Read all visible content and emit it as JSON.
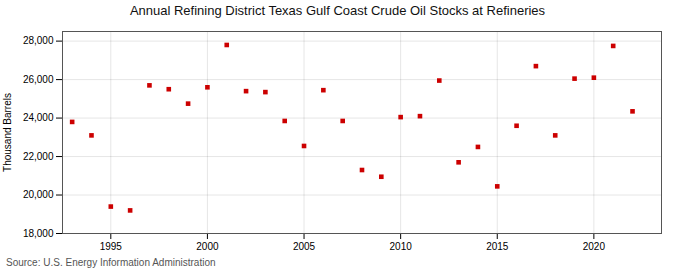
{
  "chart_data": {
    "type": "scatter",
    "title": "Annual Refining District Texas Gulf Coast Crude Oil Stocks at Refineries",
    "ylabel": "Thousand Barrels",
    "source": "Source: U.S. Energy Information Administration",
    "x": [
      1993,
      1994,
      1995,
      1996,
      1997,
      1998,
      1999,
      2000,
      2001,
      2002,
      2003,
      2004,
      2005,
      2006,
      2007,
      2008,
      2009,
      2010,
      2011,
      2012,
      2013,
      2014,
      2015,
      2016,
      2017,
      2018,
      2019,
      2020,
      2021,
      2022
    ],
    "values": [
      23800,
      23100,
      19400,
      19200,
      25700,
      25500,
      24750,
      25600,
      27800,
      25400,
      25350,
      23850,
      22550,
      25450,
      23850,
      21300,
      20950,
      24050,
      24100,
      25950,
      21700,
      22500,
      20450,
      23600,
      26700,
      23100,
      26050,
      26100,
      27750,
      24350
    ],
    "color": "#cc0000",
    "marker": "square",
    "xlim": [
      1992.5,
      2023.5
    ],
    "ylim": [
      18000,
      28500
    ],
    "xticks": [
      1995,
      2000,
      2005,
      2010,
      2015,
      2020
    ],
    "yticks": [
      {
        "value": 18000,
        "label": "18,000"
      },
      {
        "value": 20000,
        "label": "20,000"
      },
      {
        "value": 22000,
        "label": "22,000"
      },
      {
        "value": 24000,
        "label": "24,000"
      },
      {
        "value": 26000,
        "label": "26,000"
      },
      {
        "value": 28000,
        "label": "28,000"
      }
    ],
    "grid": true
  }
}
